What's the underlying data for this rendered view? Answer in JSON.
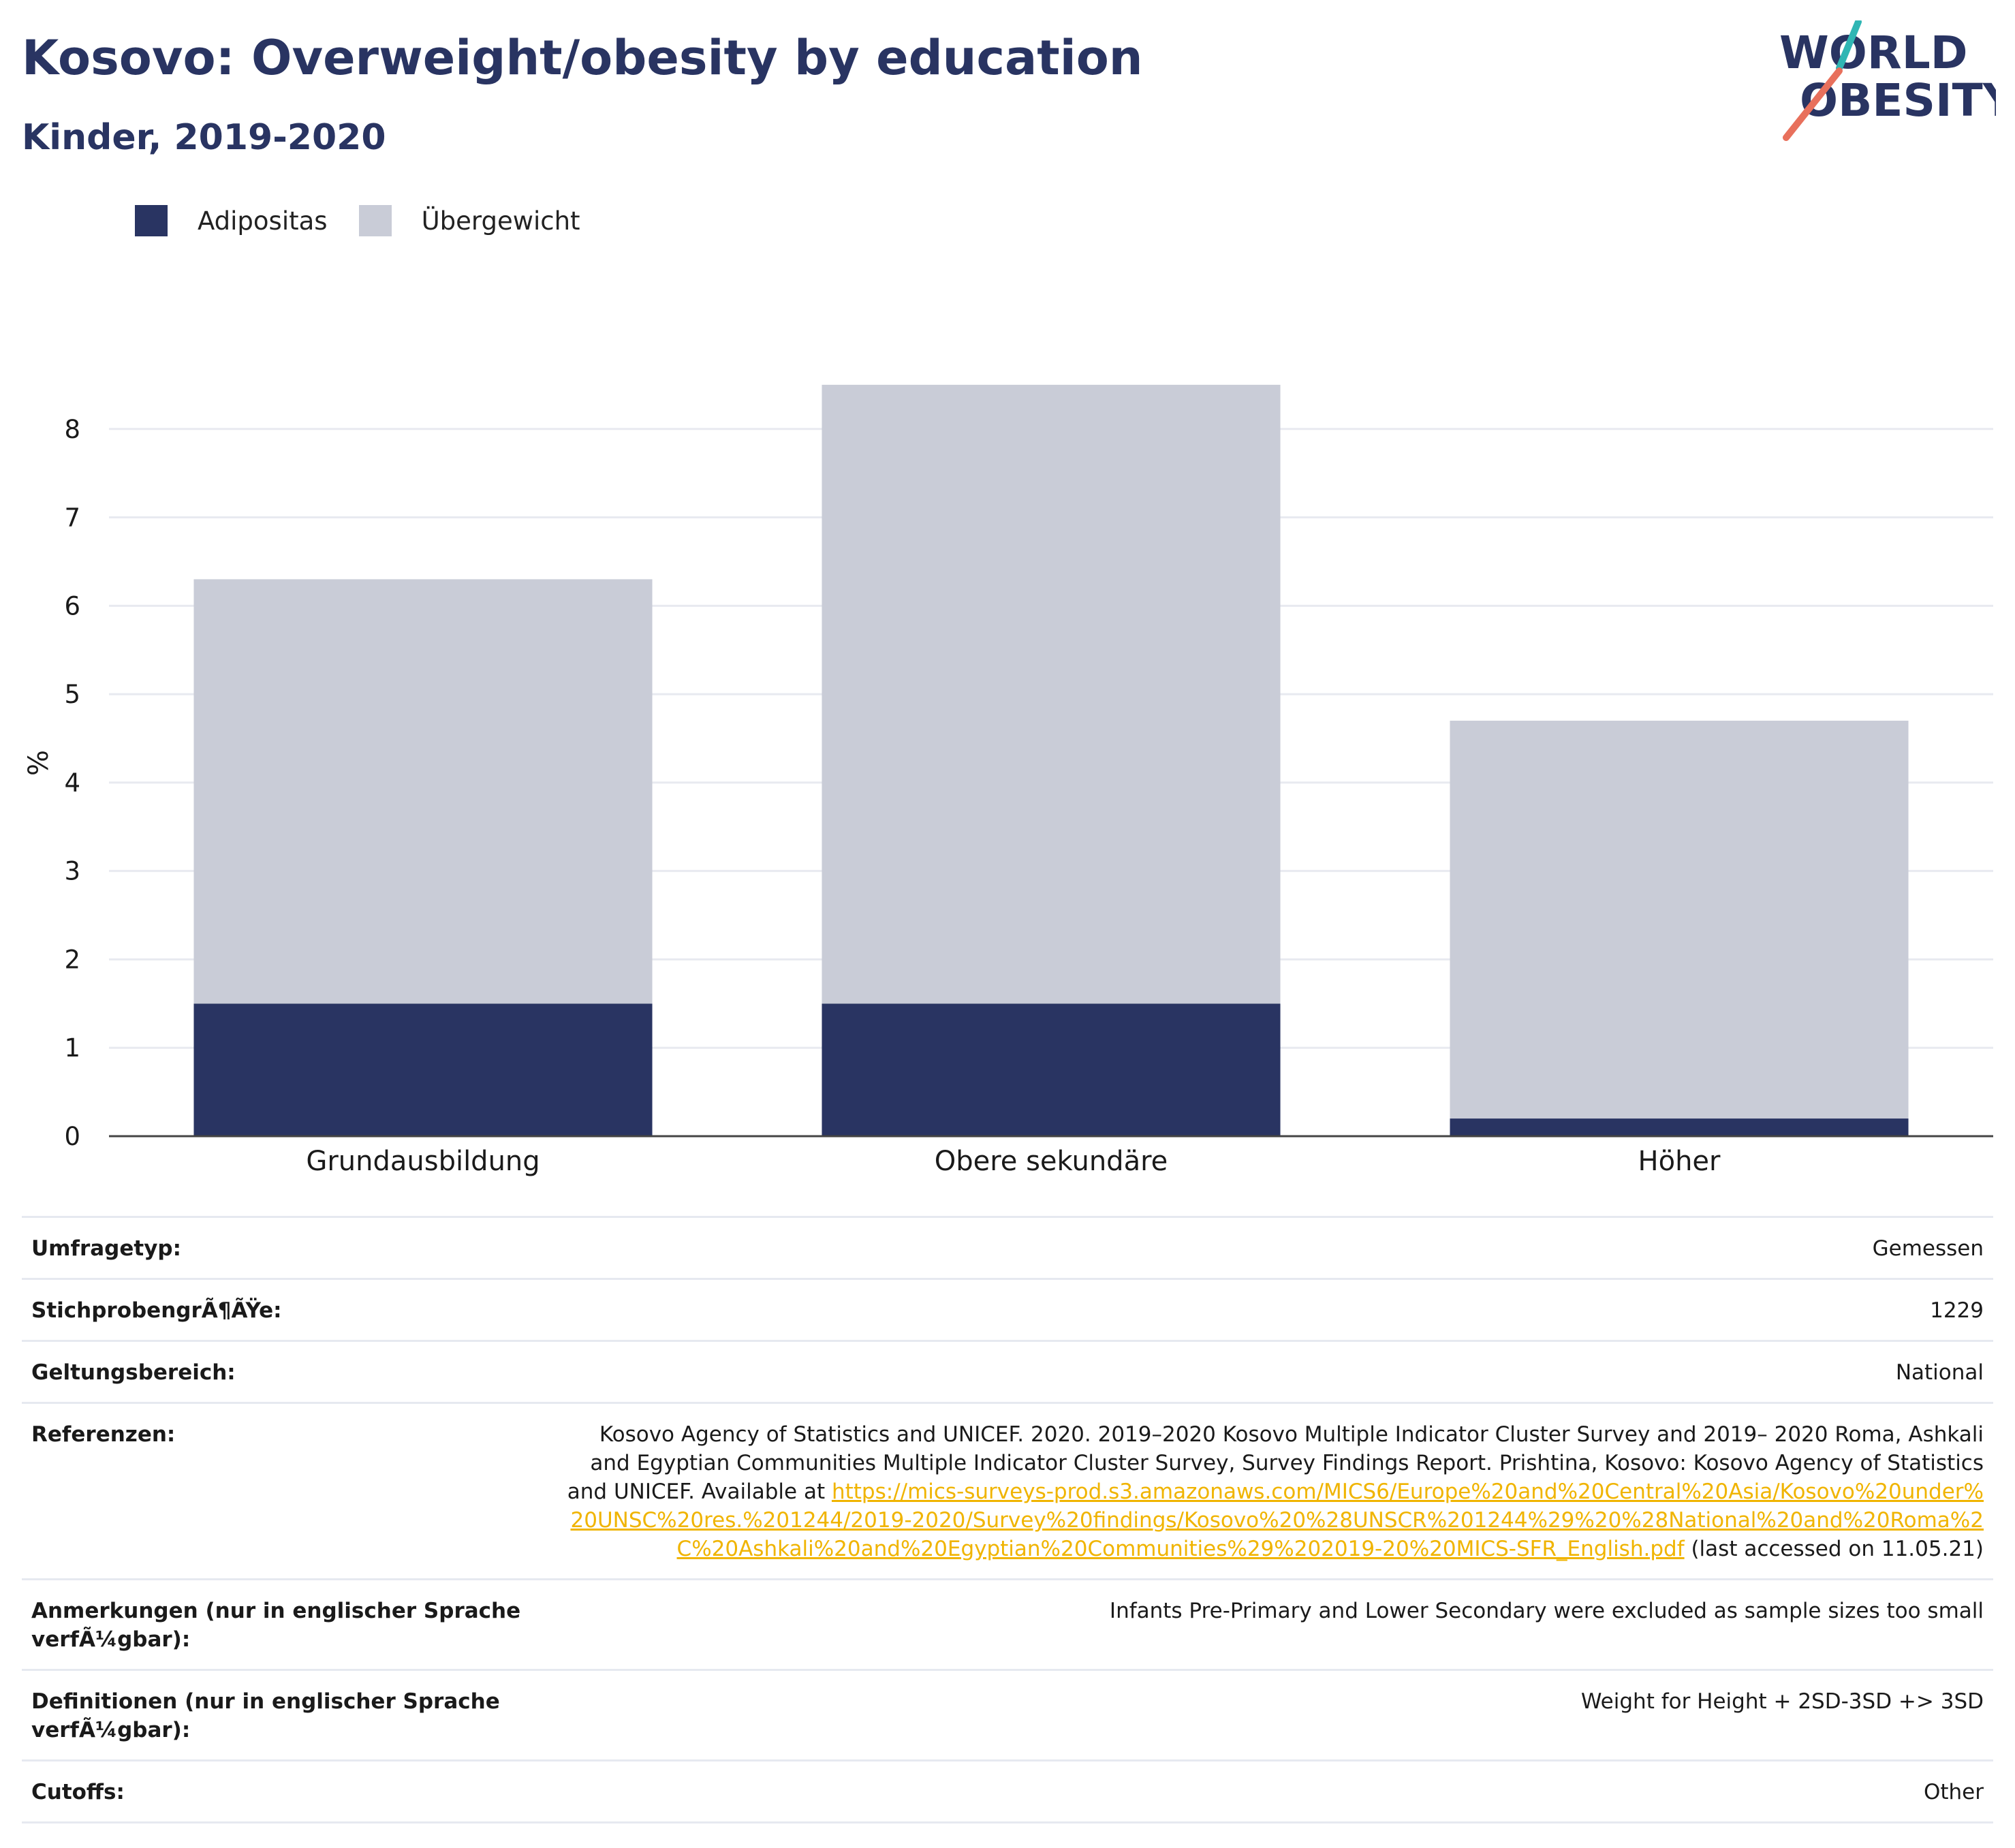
{
  "header": {
    "title": "Kosovo: Overweight/obesity by education",
    "subtitle": "Kinder, 2019-2020"
  },
  "logo": {
    "line1": "WORLD",
    "line2": "OBESITY"
  },
  "colors": {
    "obesity": "#293462",
    "overweight": "#c9ccd7",
    "title": "#293462",
    "link": "#f0b400",
    "logo_teal": "#2fb6b4",
    "logo_red": "#e8705c"
  },
  "legend": [
    {
      "label": "Adipositas",
      "color": "#293462"
    },
    {
      "label": "Übergewicht",
      "color": "#c9ccd7"
    }
  ],
  "chart_data": {
    "type": "bar",
    "stacked": true,
    "categories": [
      "Grundausbildung",
      "Obere sekundäre",
      "Höher"
    ],
    "series": [
      {
        "name": "Adipositas",
        "values": [
          1.5,
          1.5,
          0.2
        ]
      },
      {
        "name": "Übergewicht",
        "values": [
          4.8,
          7.0,
          4.5
        ]
      }
    ],
    "ylabel": "%",
    "ylim": [
      0,
      9
    ],
    "yticks": [
      0,
      1,
      2,
      3,
      4,
      5,
      6,
      7,
      8
    ],
    "grid": true
  },
  "info": [
    {
      "label": "Umfragetyp:",
      "value": "Gemessen"
    },
    {
      "label": "StichprobengrÃ¶ÃŸe:",
      "value": "1229"
    },
    {
      "label": "Geltungsbereich:",
      "value": "National"
    },
    {
      "label": "Referenzen:",
      "value_before": "Kosovo Agency of Statistics and UNICEF. 2020. 2019–2020 Kosovo Multiple Indicator Cluster Survey and 2019– 2020 Roma, Ashkali and Egyptian Communities Multiple Indicator Cluster Survey, Survey Findings Report. Prishtina, Kosovo: Kosovo Agency of Statistics and UNICEF. Available at ",
      "link": "https://mics-surveys-prod.s3.amazonaws.com/MICS6/Europe%20and%20Central%20Asia/Kosovo%20under%20UNSC%20res.%201244/2019-2020/Survey%20findings/Kosovo%20%28UNSCR%201244%29%20%28National%20and%20Roma%2C%20Ashkali%20and%20Egyptian%20Communities%29%202019-20%20MICS-SFR_English.pdf",
      "value_after": " (last accessed on 11.05.21)"
    },
    {
      "label": "Anmerkungen (nur in englischer Sprache verfÃ¼gbar):",
      "value": "Infants Pre-Primary and Lower Secondary were excluded as sample sizes too small"
    },
    {
      "label": "Definitionen (nur in englischer Sprache verfÃ¼gbar):",
      "value": "Weight for Height + 2SD-3SD +> 3SD"
    },
    {
      "label": "Cutoffs:",
      "value": "Other"
    }
  ]
}
